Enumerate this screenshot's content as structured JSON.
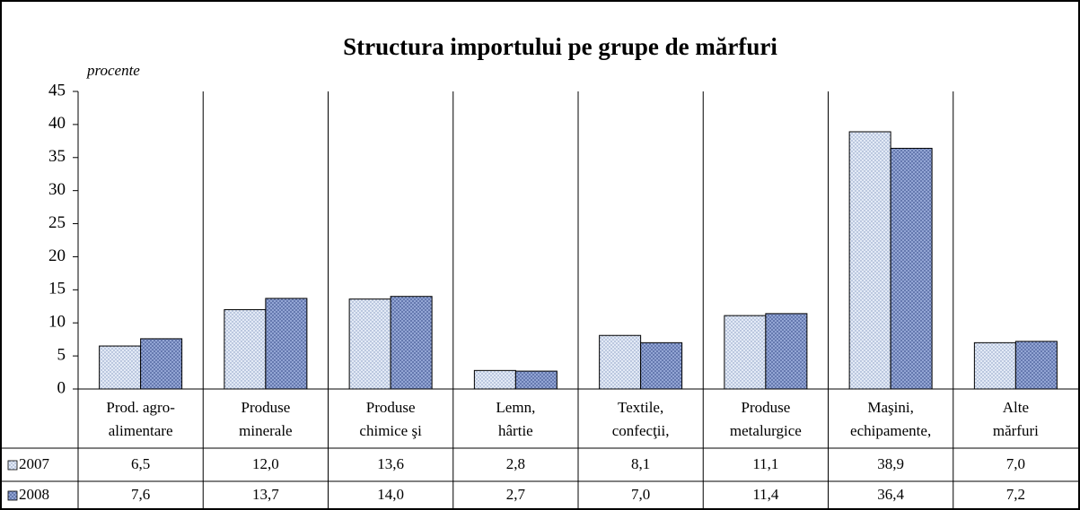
{
  "chart_data": {
    "type": "bar",
    "title": "Structura importului pe grupe de mărfuri",
    "y_label": "procente",
    "categories": [
      [
        "Prod. agro-",
        "alimentare"
      ],
      [
        "Produse",
        "minerale"
      ],
      [
        "Produse",
        "chimice şi"
      ],
      [
        "Lemn,",
        "hârtie"
      ],
      [
        "Textile,",
        "confecţii,"
      ],
      [
        "Produse",
        "metalurgice"
      ],
      [
        "Maşini,",
        "echipamente,"
      ],
      [
        "Alte",
        "mărfuri"
      ]
    ],
    "series": [
      {
        "name": "2007",
        "color": "#e3eaf6",
        "values": [
          6.5,
          12.0,
          13.6,
          2.8,
          8.1,
          11.1,
          38.9,
          7.0
        ],
        "value_labels": [
          "6,5",
          "12,0",
          "13,6",
          "2,8",
          "8,1",
          "11,1",
          "38,9",
          "7,0"
        ]
      },
      {
        "name": "2008",
        "color": "#9fb1de",
        "values": [
          7.6,
          13.7,
          14.0,
          2.7,
          7.0,
          11.4,
          36.4,
          7.2
        ],
        "value_labels": [
          "7,6",
          "13,7",
          "14,0",
          "2,7",
          "7,0",
          "11,4",
          "36,4",
          "7,2"
        ]
      }
    ],
    "ylim": [
      0,
      45
    ],
    "yticks": [
      0,
      5,
      10,
      15,
      20,
      25,
      30,
      35,
      40,
      45
    ]
  }
}
